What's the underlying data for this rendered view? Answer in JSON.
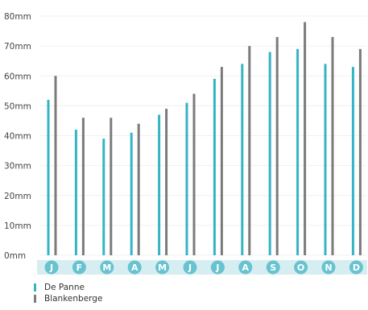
{
  "chart_data": {
    "type": "bar",
    "title": "",
    "xlabel": "",
    "ylabel": "",
    "ylim": [
      0,
      80
    ],
    "yticks": [
      "0mm",
      "10mm",
      "20mm",
      "30mm",
      "40mm",
      "50mm",
      "60mm",
      "70mm",
      "80mm"
    ],
    "grid": true,
    "legend_position": "bottom-left",
    "categories": [
      "J",
      "F",
      "M",
      "A",
      "M",
      "J",
      "J",
      "A",
      "S",
      "O",
      "N",
      "D"
    ],
    "series": [
      {
        "name": "De Panne",
        "color": "#35b4c3",
        "values": [
          52,
          42,
          39,
          41,
          47,
          51,
          59,
          64,
          68,
          69,
          64,
          63
        ]
      },
      {
        "name": "Blankenberge",
        "color": "#7b7b7b",
        "values": [
          60,
          46,
          46,
          44,
          49,
          54,
          63,
          70,
          73,
          78,
          73,
          69
        ]
      }
    ]
  },
  "colors": {
    "month_circle": "#67c3cf",
    "month_band": "#d6eef1"
  }
}
